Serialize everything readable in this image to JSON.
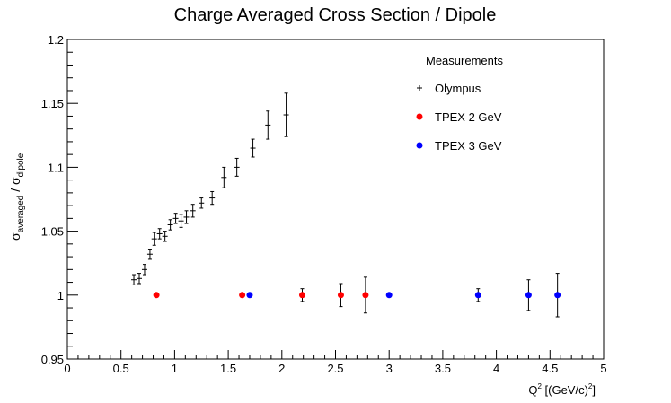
{
  "chart_data": {
    "type": "scatter",
    "title": "Charge Averaged Cross Section / Dipole",
    "xlabel": {
      "base": "Q",
      "sup": "2",
      "unit_open": " [(GeV/c)",
      "unit_sup": "2",
      "unit_close": "]"
    },
    "ylabel": {
      "s1": "σ",
      "sub1": "averaged",
      "slash": " / ",
      "s2": "σ",
      "sub2": "dipole"
    },
    "xlim": [
      0,
      5
    ],
    "ylim": [
      0.95,
      1.2
    ],
    "x_ticks": [
      0,
      0.5,
      1,
      1.5,
      2,
      2.5,
      3,
      3.5,
      4,
      4.5,
      5
    ],
    "x_tick_labels": [
      "0",
      "0.5",
      "1",
      "1.5",
      "2",
      "2.5",
      "3",
      "3.5",
      "4",
      "4.5",
      "5"
    ],
    "y_ticks": [
      0.95,
      1.0,
      1.05,
      1.1,
      1.15,
      1.2
    ],
    "y_tick_labels": [
      "0.95",
      "1",
      "1.05",
      "1.1",
      "1.15",
      "1.2"
    ],
    "legend_title": "Measurements",
    "legend_position": "top-right",
    "series": [
      {
        "name": "Olympus",
        "marker": "cross",
        "color": "#000000",
        "x": [
          0.62,
          0.67,
          0.72,
          0.77,
          0.81,
          0.86,
          0.91,
          0.96,
          1.01,
          1.06,
          1.11,
          1.17,
          1.25,
          1.35,
          1.46,
          1.58,
          1.73,
          1.87,
          2.04
        ],
        "y": [
          1.012,
          1.013,
          1.02,
          1.032,
          1.044,
          1.048,
          1.046,
          1.055,
          1.06,
          1.058,
          1.061,
          1.066,
          1.072,
          1.076,
          1.092,
          1.1,
          1.115,
          1.133,
          1.141
        ],
        "err": [
          0.004,
          0.004,
          0.004,
          0.004,
          0.005,
          0.004,
          0.004,
          0.004,
          0.004,
          0.005,
          0.005,
          0.005,
          0.004,
          0.005,
          0.008,
          0.007,
          0.007,
          0.011,
          0.017
        ]
      },
      {
        "name": "TPEX 2 GeV",
        "marker": "circle",
        "color": "#ff0000",
        "x": [
          0.83,
          1.63,
          2.19,
          2.55,
          2.78
        ],
        "y": [
          1.0,
          1.0,
          1.0,
          1.0,
          1.0
        ],
        "err": [
          0,
          0,
          0.005,
          0.009,
          0.014
        ]
      },
      {
        "name": "TPEX 3 GeV",
        "marker": "circle",
        "color": "#0000ff",
        "x": [
          1.7,
          3.0,
          3.83,
          4.3,
          4.57
        ],
        "y": [
          1.0,
          1.0,
          1.0,
          1.0,
          1.0
        ],
        "err": [
          0,
          0,
          0.005,
          0.012,
          0.017
        ]
      }
    ]
  }
}
